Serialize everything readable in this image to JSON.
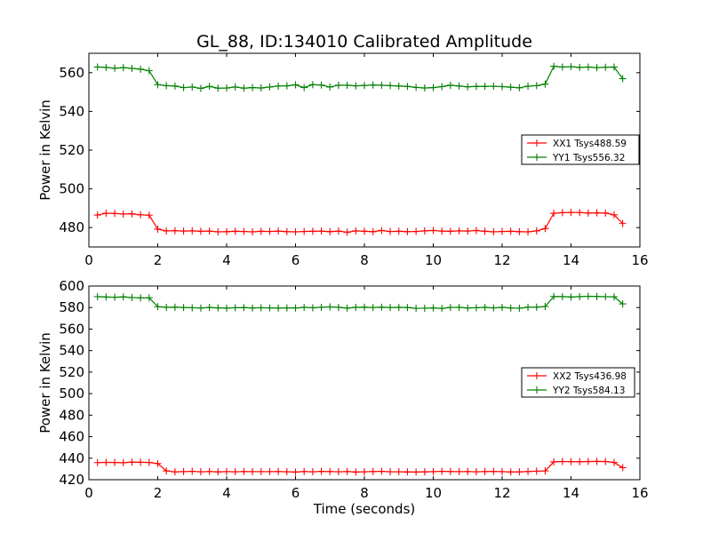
{
  "title": "GL_88, ID:134010 Calibrated Amplitude",
  "chart_data": [
    {
      "type": "line",
      "ylabel": "Power in Kelvin",
      "xlabel": "",
      "xlim": [
        0,
        16
      ],
      "ylim": [
        470,
        570
      ],
      "xticks": [
        0,
        2,
        4,
        6,
        8,
        10,
        12,
        14,
        16
      ],
      "yticks": [
        480,
        500,
        520,
        540,
        560
      ],
      "legend_position": "right",
      "x": [
        0.25,
        0.5,
        0.75,
        1.0,
        1.25,
        1.5,
        1.75,
        2.0,
        2.25,
        2.5,
        2.75,
        3.0,
        3.25,
        3.5,
        3.75,
        4.0,
        4.25,
        4.5,
        4.75,
        5.0,
        5.25,
        5.5,
        5.75,
        6.0,
        6.25,
        6.5,
        6.75,
        7.0,
        7.25,
        7.5,
        7.75,
        8.0,
        8.25,
        8.5,
        8.75,
        9.0,
        9.25,
        9.5,
        9.75,
        10.0,
        10.25,
        10.5,
        10.75,
        11.0,
        11.25,
        11.5,
        11.75,
        12.0,
        12.25,
        12.5,
        12.75,
        13.0,
        13.25,
        13.5,
        13.75,
        14.0,
        14.25,
        14.5,
        14.75,
        15.0,
        15.25,
        15.5
      ],
      "series": [
        {
          "name": "XX1 Tsys488.59",
          "color": "#ff0000",
          "values": [
            486.5,
            487.4,
            487.3,
            487.0,
            487.1,
            486.6,
            486.4,
            479.2,
            478.3,
            478.4,
            478.2,
            478.3,
            478.1,
            478.2,
            477.8,
            477.9,
            478.1,
            478.0,
            477.8,
            478.1,
            478.0,
            478.2,
            477.9,
            477.8,
            478.0,
            478.1,
            478.2,
            477.9,
            478.2,
            477.6,
            478.3,
            478.1,
            477.9,
            478.5,
            478.0,
            478.1,
            477.9,
            478.0,
            478.3,
            478.5,
            478.2,
            478.1,
            478.3,
            478.2,
            478.5,
            478.1,
            477.8,
            478.0,
            478.1,
            477.9,
            477.8,
            478.3,
            479.5,
            487.4,
            487.7,
            487.8,
            487.8,
            487.5,
            487.6,
            487.5,
            486.6,
            482.1
          ]
        },
        {
          "name": "YY1 Tsys556.32",
          "color": "#008000",
          "values": [
            562.9,
            562.7,
            562.3,
            562.6,
            562.2,
            561.8,
            561.0,
            553.8,
            553.3,
            553.1,
            552.3,
            552.6,
            551.9,
            552.9,
            552.0,
            552.1,
            552.6,
            552.0,
            552.3,
            552.1,
            552.6,
            553.1,
            553.2,
            553.7,
            552.3,
            553.8,
            553.6,
            552.6,
            553.5,
            553.5,
            553.2,
            553.4,
            553.6,
            553.5,
            553.3,
            553.1,
            552.9,
            552.4,
            552.1,
            552.3,
            552.8,
            553.5,
            553.1,
            552.7,
            552.9,
            552.9,
            553.0,
            552.8,
            552.5,
            552.2,
            553.0,
            553.3,
            554.1,
            563.3,
            562.9,
            563.1,
            562.7,
            562.9,
            562.6,
            562.8,
            562.9,
            556.9
          ]
        }
      ]
    },
    {
      "type": "line",
      "ylabel": "Power in Kelvin",
      "xlabel": "Time (seconds)",
      "xlim": [
        0,
        16
      ],
      "ylim": [
        420,
        600
      ],
      "xticks": [
        0,
        2,
        4,
        6,
        8,
        10,
        12,
        14,
        16
      ],
      "yticks": [
        420,
        440,
        460,
        480,
        500,
        520,
        540,
        560,
        580,
        600
      ],
      "legend_position": "right",
      "x": [
        0.25,
        0.5,
        0.75,
        1.0,
        1.25,
        1.5,
        1.75,
        2.0,
        2.25,
        2.5,
        2.75,
        3.0,
        3.25,
        3.5,
        3.75,
        4.0,
        4.25,
        4.5,
        4.75,
        5.0,
        5.25,
        5.5,
        5.75,
        6.0,
        6.25,
        6.5,
        6.75,
        7.0,
        7.25,
        7.5,
        7.75,
        8.0,
        8.25,
        8.5,
        8.75,
        9.0,
        9.25,
        9.5,
        9.75,
        10.0,
        10.25,
        10.5,
        10.75,
        11.0,
        11.25,
        11.5,
        11.75,
        12.0,
        12.25,
        12.5,
        12.75,
        13.0,
        13.25,
        13.5,
        13.75,
        14.0,
        14.25,
        14.5,
        14.75,
        15.0,
        15.25,
        15.5
      ],
      "series": [
        {
          "name": "XX2 Tsys436.98",
          "color": "#ff0000",
          "values": [
            435.9,
            436.1,
            436.0,
            435.8,
            436.3,
            436.2,
            436.0,
            435.0,
            428.2,
            427.3,
            427.5,
            427.8,
            427.4,
            427.6,
            427.3,
            427.5,
            427.4,
            427.6,
            427.5,
            427.5,
            427.5,
            427.6,
            427.4,
            427.1,
            427.6,
            427.4,
            427.7,
            427.6,
            427.4,
            427.6,
            427.1,
            427.4,
            427.6,
            427.8,
            427.4,
            427.4,
            427.2,
            427.1,
            427.3,
            427.5,
            427.8,
            427.6,
            427.5,
            427.6,
            427.4,
            427.6,
            427.7,
            427.5,
            427.2,
            427.3,
            427.6,
            427.9,
            428.2,
            436.6,
            436.9,
            436.8,
            436.7,
            436.9,
            437.0,
            436.9,
            436.0,
            431.2
          ]
        },
        {
          "name": "YY2 Tsys584.13",
          "color": "#008000",
          "values": [
            590.2,
            589.8,
            589.6,
            589.9,
            589.3,
            589.0,
            589.1,
            580.8,
            580.2,
            580.3,
            580.1,
            579.8,
            579.6,
            580.1,
            579.7,
            579.5,
            579.8,
            580.0,
            579.6,
            579.8,
            579.7,
            579.5,
            579.7,
            579.6,
            580.2,
            579.8,
            580.2,
            580.6,
            580.2,
            579.5,
            580.2,
            580.3,
            580.1,
            580.3,
            580.1,
            580.2,
            580.0,
            579.3,
            579.4,
            579.7,
            579.2,
            580.1,
            580.2,
            579.6,
            579.8,
            580.2,
            579.7,
            580.2,
            579.6,
            579.4,
            580.3,
            580.4,
            581.0,
            590.3,
            590.2,
            589.8,
            590.2,
            590.5,
            590.3,
            590.1,
            590.0,
            583.4
          ]
        }
      ]
    }
  ]
}
